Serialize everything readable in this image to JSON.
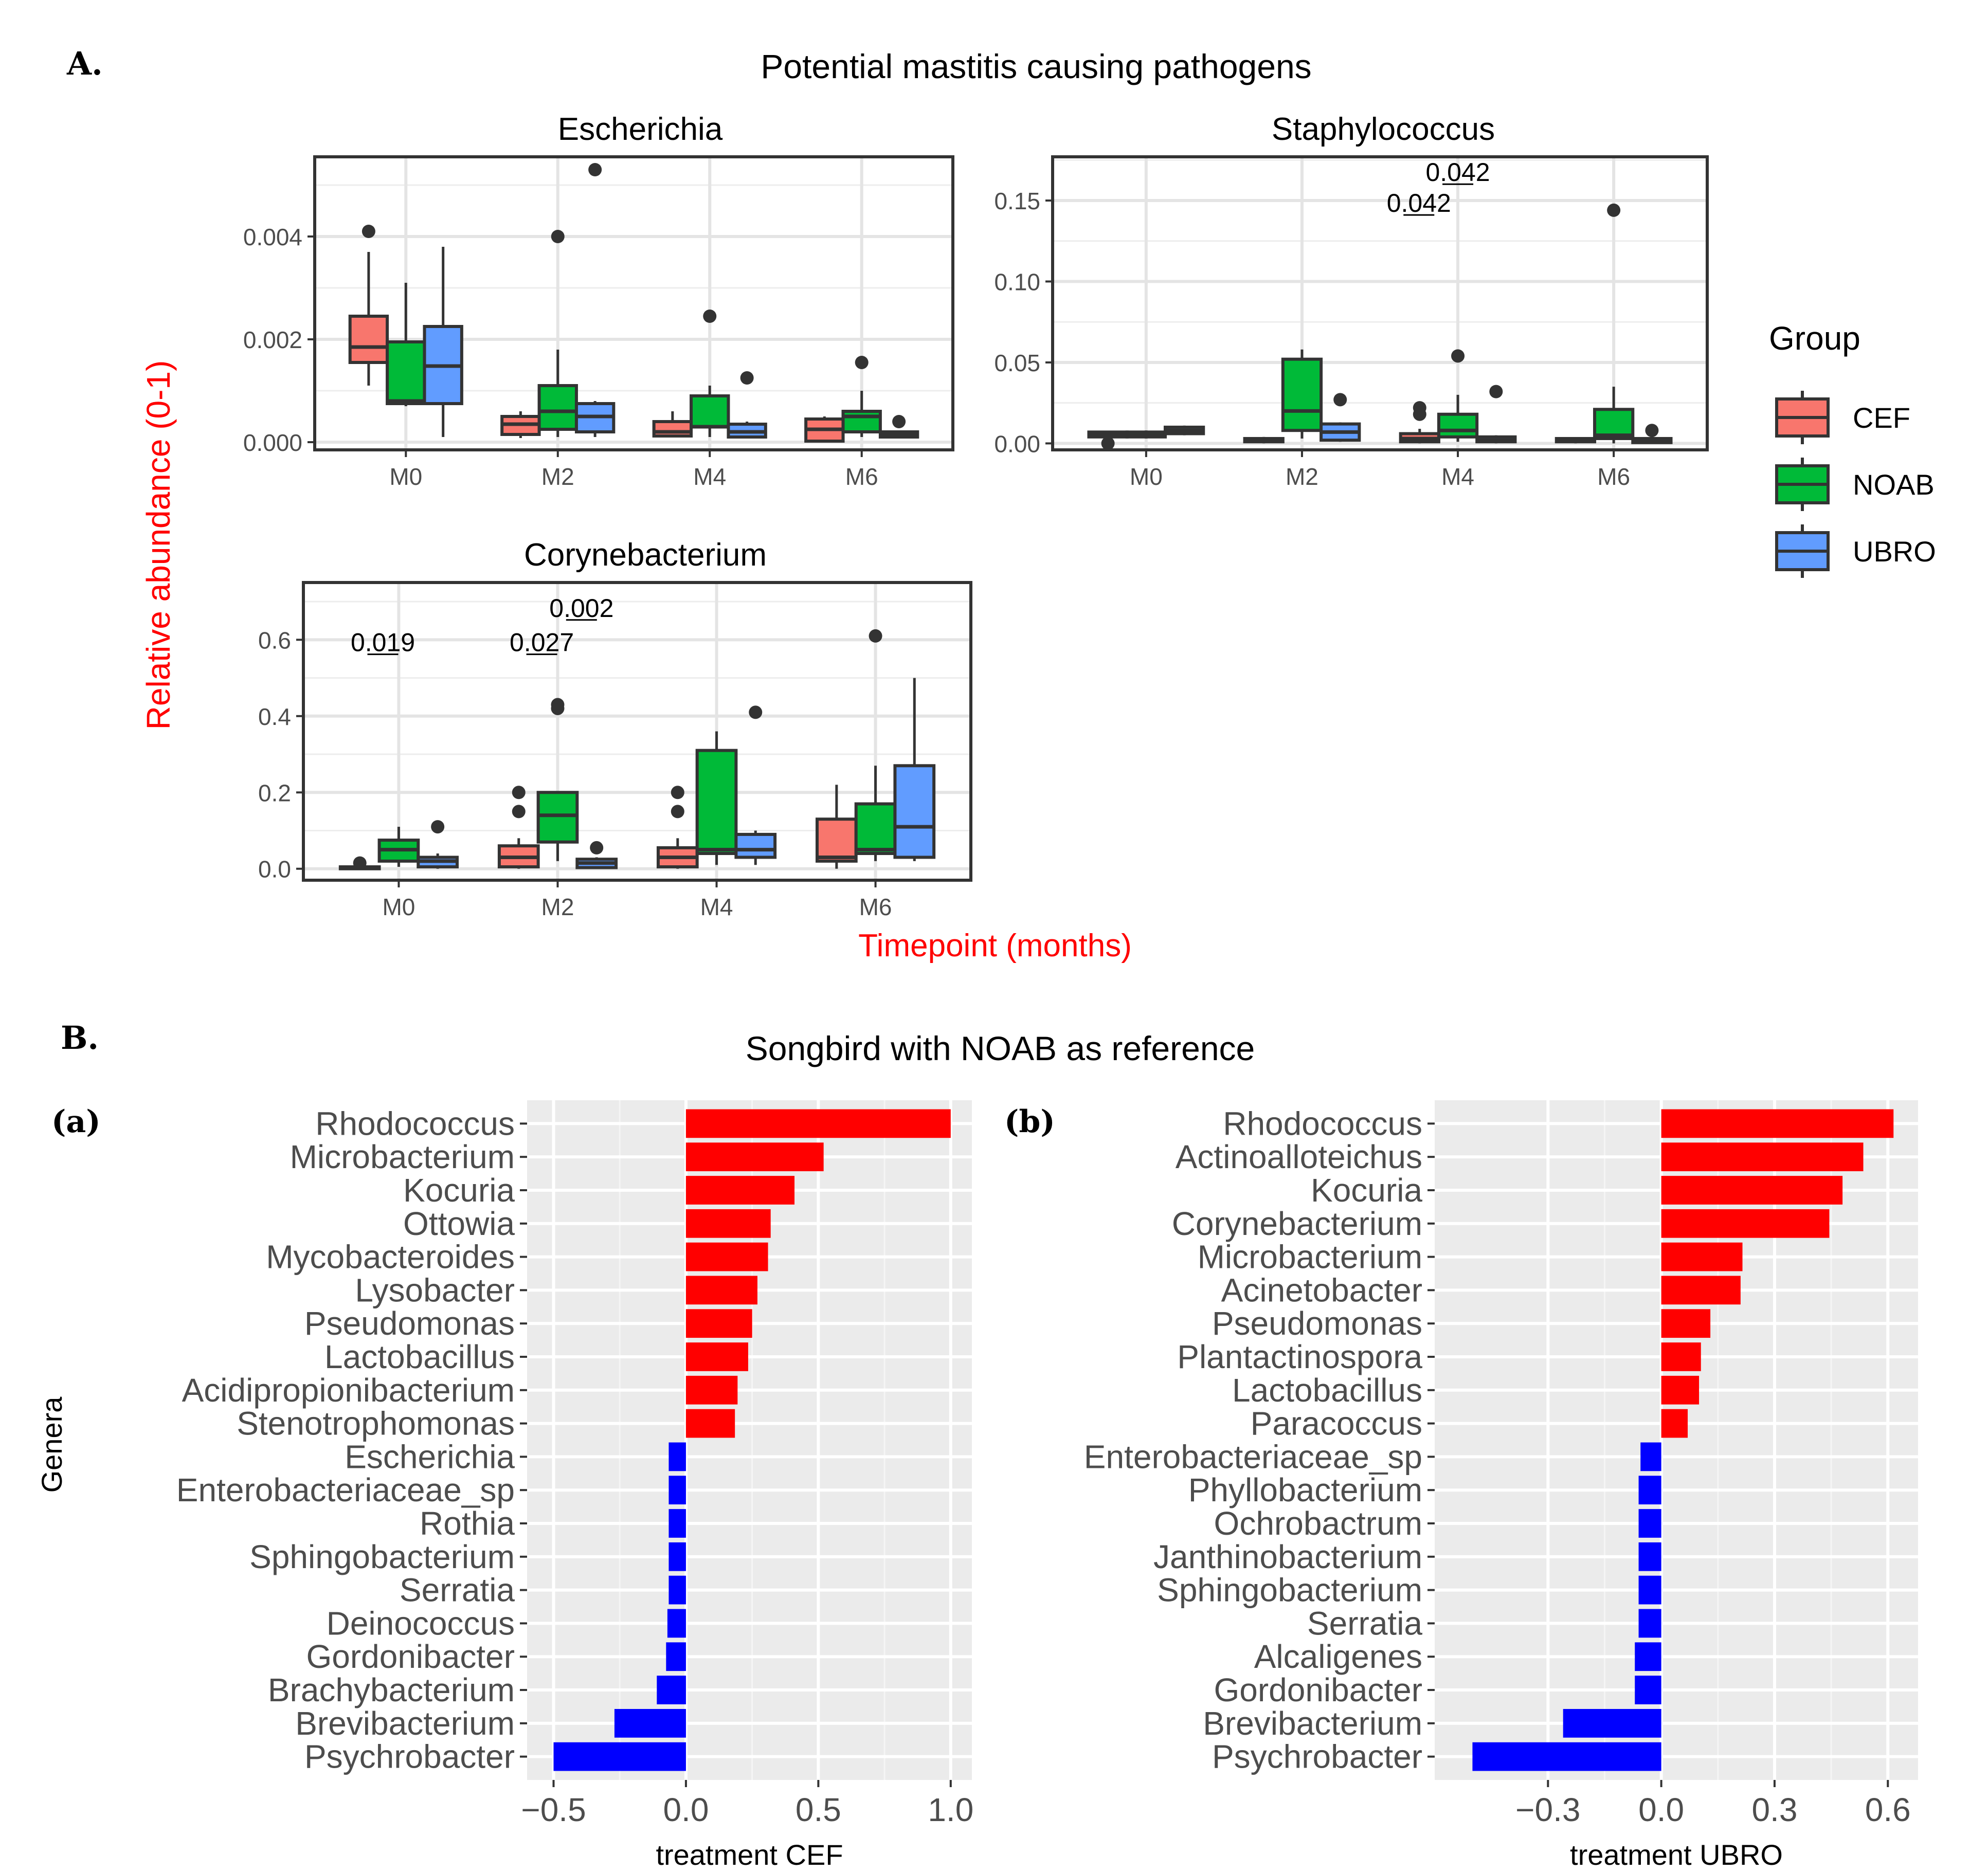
{
  "panel_a": {
    "label": "A.",
    "title": "Potential mastitis causing pathogens",
    "ylabel": "Relative abundance  (0-1)",
    "xlabel": "Timepoint (months)"
  },
  "panel_b": {
    "label": "B.",
    "title": "Songbird with NOAB as reference",
    "ylabel": "Genera"
  },
  "legend": {
    "title": "Group",
    "items": [
      {
        "label": "CEF",
        "color": "#F8766D"
      },
      {
        "label": "NOAB",
        "color": "#00BA38"
      },
      {
        "label": "UBRO",
        "color": "#619CFF"
      }
    ]
  },
  "chart_data": [
    {
      "type": "box",
      "title": "Escherichia",
      "xlabel": "Timepoint (months)",
      "ylabel": "Relative abundance  (0-1)",
      "categories": [
        "M0",
        "M2",
        "M4",
        "M6"
      ],
      "ylim": [
        -0.00015,
        0.00555
      ],
      "yticks": [
        0,
        0.002,
        0.004
      ],
      "ytick_labels": [
        "0.000",
        "0.002",
        "0.004"
      ],
      "series": [
        {
          "name": "CEF",
          "boxes": [
            {
              "low": 0.0011,
              "q1": 0.00155,
              "median": 0.00185,
              "q3": 0.00245,
              "high": 0.0037,
              "outliers": [
                0.0041
              ]
            },
            {
              "low": 8e-05,
              "q1": 0.00015,
              "median": 0.00035,
              "q3": 0.0005,
              "high": 0.0006,
              "outliers": []
            },
            {
              "low": 0.0001,
              "q1": 0.00012,
              "median": 0.0002,
              "q3": 0.0004,
              "high": 0.0006,
              "outliers": []
            },
            {
              "low": 0.0,
              "q1": 2e-05,
              "median": 0.00025,
              "q3": 0.00045,
              "high": 0.0005,
              "outliers": []
            }
          ]
        },
        {
          "name": "NOAB",
          "boxes": [
            {
              "low": 0.0007,
              "q1": 0.00075,
              "median": 0.0008,
              "q3": 0.00195,
              "high": 0.0031,
              "outliers": []
            },
            {
              "low": 0.0001,
              "q1": 0.00025,
              "median": 0.0006,
              "q3": 0.0011,
              "high": 0.0018,
              "outliers": [
                0.004
              ]
            },
            {
              "low": 0.0001,
              "q1": 0.0003,
              "median": 0.0003,
              "q3": 0.0009,
              "high": 0.0011,
              "outliers": [
                0.00245
              ]
            },
            {
              "low": 0.0001,
              "q1": 0.0002,
              "median": 0.0005,
              "q3": 0.0006,
              "high": 0.001,
              "outliers": [
                0.00155
              ]
            }
          ]
        },
        {
          "name": "UBRO",
          "boxes": [
            {
              "low": 0.0001,
              "q1": 0.00075,
              "median": 0.00148,
              "q3": 0.00225,
              "high": 0.0038,
              "outliers": []
            },
            {
              "low": 0.0001,
              "q1": 0.0002,
              "median": 0.0005,
              "q3": 0.00075,
              "high": 0.0008,
              "outliers": [
                0.0053
              ]
            },
            {
              "low": 0.0001,
              "q1": 0.0001,
              "median": 0.0002,
              "q3": 0.00035,
              "high": 0.0004,
              "outliers": [
                0.00125
              ]
            },
            {
              "low": 0.0001,
              "q1": 0.0001,
              "median": 0.00015,
              "q3": 0.0002,
              "high": 0.0002,
              "outliers": [
                0.0004
              ]
            }
          ]
        }
      ],
      "annotations": []
    },
    {
      "type": "box",
      "title": "Staphylococcus",
      "xlabel": "Timepoint (months)",
      "ylabel": "Relative abundance  (0-1)",
      "categories": [
        "M0",
        "M2",
        "M4",
        "M6"
      ],
      "ylim": [
        -0.004,
        0.177
      ],
      "yticks": [
        0,
        0.05,
        0.1,
        0.15
      ],
      "ytick_labels": [
        "0.00",
        "0.05",
        "0.10",
        "0.15"
      ],
      "series": [
        {
          "name": "CEF",
          "boxes": [
            {
              "low": 0.002,
              "q1": 0.004,
              "median": 0.006,
              "q3": 0.007,
              "high": 0.007,
              "outliers": [
                0.0
              ]
            },
            {
              "low": 0.0,
              "q1": 0.001,
              "median": 0.002,
              "q3": 0.003,
              "high": 0.004,
              "outliers": []
            },
            {
              "low": 0.0,
              "q1": 0.001,
              "median": 0.003,
              "q3": 0.006,
              "high": 0.009,
              "outliers": [
                0.018,
                0.022
              ]
            },
            {
              "low": 0.0,
              "q1": 0.001,
              "median": 0.002,
              "q3": 0.003,
              "high": 0.003,
              "outliers": []
            }
          ]
        },
        {
          "name": "NOAB",
          "boxes": [
            {
              "low": 0.003,
              "q1": 0.004,
              "median": 0.005,
              "q3": 0.007,
              "high": 0.008,
              "outliers": []
            },
            {
              "low": 0.003,
              "q1": 0.008,
              "median": 0.02,
              "q3": 0.052,
              "high": 0.058,
              "outliers": []
            },
            {
              "low": 0.001,
              "q1": 0.004,
              "median": 0.008,
              "q3": 0.018,
              "high": 0.03,
              "outliers": [
                0.054
              ]
            },
            {
              "low": 0.0,
              "q1": 0.003,
              "median": 0.005,
              "q3": 0.021,
              "high": 0.035,
              "outliers": [
                0.144
              ]
            }
          ]
        },
        {
          "name": "UBRO",
          "boxes": [
            {
              "low": 0.005,
              "q1": 0.006,
              "median": 0.008,
              "q3": 0.01,
              "high": 0.011,
              "outliers": []
            },
            {
              "low": 0.001,
              "q1": 0.002,
              "median": 0.007,
              "q3": 0.012,
              "high": 0.013,
              "outliers": [
                0.027
              ]
            },
            {
              "low": 0.0,
              "q1": 0.001,
              "median": 0.002,
              "q3": 0.004,
              "high": 0.005,
              "outliers": [
                0.032
              ]
            },
            {
              "low": 0.0,
              "q1": 0.0005,
              "median": 0.001,
              "q3": 0.003,
              "high": 0.004,
              "outliers": [
                0.008
              ]
            }
          ]
        }
      ],
      "annotations": [
        {
          "text": "0.042",
          "x": 2.75,
          "y": 0.143
        },
        {
          "text": "0.042",
          "x": 3.0,
          "y": 0.162
        }
      ]
    },
    {
      "type": "box",
      "title": "Corynebacterium",
      "xlabel": "Timepoint (months)",
      "ylabel": "Relative abundance  (0-1)",
      "categories": [
        "M0",
        "M2",
        "M4",
        "M6"
      ],
      "ylim": [
        -0.03,
        0.75
      ],
      "yticks": [
        0,
        0.2,
        0.4,
        0.6
      ],
      "ytick_labels": [
        "0.0",
        "0.2",
        "0.4",
        "0.6"
      ],
      "series": [
        {
          "name": "CEF",
          "boxes": [
            {
              "low": 0.0,
              "q1": 0.0,
              "median": 0.002,
              "q3": 0.005,
              "high": 0.008,
              "outliers": [
                0.015
              ]
            },
            {
              "low": 0.0,
              "q1": 0.005,
              "median": 0.03,
              "q3": 0.06,
              "high": 0.08,
              "outliers": [
                0.15,
                0.2
              ]
            },
            {
              "low": 0.0,
              "q1": 0.005,
              "median": 0.03,
              "q3": 0.055,
              "high": 0.08,
              "outliers": [
                0.15,
                0.2
              ]
            },
            {
              "low": 0.0,
              "q1": 0.02,
              "median": 0.03,
              "q3": 0.13,
              "high": 0.22,
              "outliers": []
            }
          ]
        },
        {
          "name": "NOAB",
          "boxes": [
            {
              "low": 0.005,
              "q1": 0.02,
              "median": 0.05,
              "q3": 0.075,
              "high": 0.11,
              "outliers": []
            },
            {
              "low": 0.02,
              "q1": 0.07,
              "median": 0.14,
              "q3": 0.2,
              "high": 0.2,
              "outliers": [
                0.42,
                0.43
              ]
            },
            {
              "low": 0.01,
              "q1": 0.04,
              "median": 0.05,
              "q3": 0.31,
              "high": 0.36,
              "outliers": []
            },
            {
              "low": 0.02,
              "q1": 0.04,
              "median": 0.05,
              "q3": 0.17,
              "high": 0.27,
              "outliers": [
                0.61
              ]
            }
          ]
        },
        {
          "name": "UBRO",
          "boxes": [
            {
              "low": 0.0,
              "q1": 0.005,
              "median": 0.02,
              "q3": 0.03,
              "high": 0.04,
              "outliers": [
                0.11
              ]
            },
            {
              "low": 0.0,
              "q1": 0.003,
              "median": 0.015,
              "q3": 0.025,
              "high": 0.03,
              "outliers": [
                0.055
              ]
            },
            {
              "low": 0.01,
              "q1": 0.03,
              "median": 0.05,
              "q3": 0.09,
              "high": 0.1,
              "outliers": [
                0.41
              ]
            },
            {
              "low": 0.02,
              "q1": 0.03,
              "median": 0.11,
              "q3": 0.27,
              "high": 0.5,
              "outliers": []
            }
          ]
        }
      ],
      "annotations": [
        {
          "text": "0.019",
          "x": 0.9,
          "y": 0.57
        },
        {
          "text": "0.027",
          "x": 1.9,
          "y": 0.57
        },
        {
          "text": "0.002",
          "x": 2.15,
          "y": 0.66
        }
      ]
    },
    {
      "type": "bar",
      "orientation": "horizontal",
      "panel_label": "(a)",
      "title": "",
      "xlabel": "treatment CEF",
      "ylabel": "Genera",
      "xlim": [
        -0.6,
        1.08
      ],
      "xticks": [
        -0.5,
        0.0,
        0.5,
        1.0
      ],
      "xtick_labels": [
        "−0.5",
        "0.0",
        "0.5",
        "1.0"
      ],
      "categories": [
        "Rhodococcus",
        "Microbacterium",
        "Kocuria",
        "Ottowia",
        "Mycobacteroides",
        "Lysobacter",
        "Pseudomonas",
        "Lactobacillus",
        "Acidipropionibacterium",
        "Stenotrophomonas",
        "Escherichia",
        "Enterobacteriaceae_sp",
        "Rothia",
        "Sphingobacterium",
        "Serratia",
        "Deinococcus",
        "Gordonibacter",
        "Brachybacterium",
        "Brevibacterium",
        "Psychrobacter"
      ],
      "values": [
        1.0,
        0.52,
        0.41,
        0.32,
        0.31,
        0.27,
        0.25,
        0.235,
        0.195,
        0.185,
        -0.065,
        -0.065,
        -0.065,
        -0.065,
        -0.065,
        -0.07,
        -0.075,
        -0.11,
        -0.27,
        -0.5
      ],
      "colors": {
        "positive": "#FF0000",
        "negative": "#0000FF"
      }
    },
    {
      "type": "bar",
      "orientation": "horizontal",
      "panel_label": "(b)",
      "title": "",
      "xlabel": "treatment UBRO",
      "ylabel": "",
      "xlim": [
        -0.6,
        0.68
      ],
      "xticks": [
        -0.3,
        0.0,
        0.3,
        0.6
      ],
      "xtick_labels": [
        "−0.3",
        "0.0",
        "0.3",
        "0.6"
      ],
      "categories": [
        "Rhodococcus",
        "Actinoalloteichus",
        "Kocuria",
        "Corynebacterium",
        "Microbacterium",
        "Acinetobacter",
        "Pseudomonas",
        "Plantactinospora",
        "Lactobacillus",
        "Paracoccus",
        "Enterobacteriaceae_sp",
        "Phyllobacterium",
        "Ochrobactrum",
        "Janthinobacterium",
        "Sphingobacterium",
        "Serratia",
        "Alcaligenes",
        "Gordonibacter",
        "Brevibacterium",
        "Psychrobacter"
      ],
      "values": [
        0.615,
        0.535,
        0.48,
        0.445,
        0.215,
        0.21,
        0.13,
        0.105,
        0.1,
        0.07,
        -0.055,
        -0.06,
        -0.06,
        -0.06,
        -0.06,
        -0.06,
        -0.07,
        -0.07,
        -0.26,
        -0.5
      ],
      "colors": {
        "positive": "#FF0000",
        "negative": "#0000FF"
      }
    }
  ]
}
